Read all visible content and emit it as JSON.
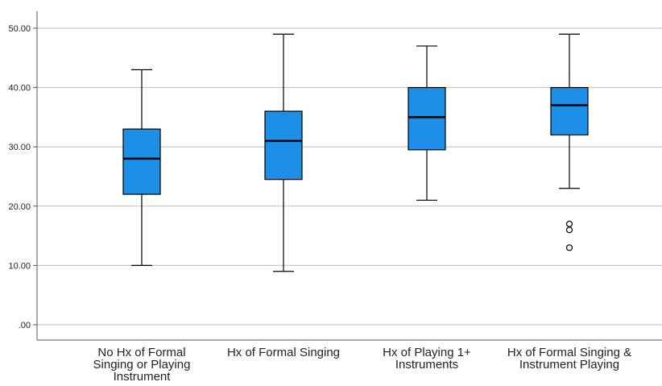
{
  "chart_data": {
    "type": "boxplot",
    "categories": [
      "No Hx of Formal\nSinging or Playing\nInstrument",
      "Hx of Formal Singing",
      "Hx of Playing 1+\nInstruments",
      "Hx of Formal Singing &\nInstrument Playing"
    ],
    "boxes": [
      {
        "min": 10,
        "q1": 22,
        "median": 28,
        "q3": 33,
        "max": 43,
        "outliers": []
      },
      {
        "min": 9,
        "q1": 24.5,
        "median": 31,
        "q3": 36,
        "max": 49,
        "outliers": []
      },
      {
        "min": 21,
        "q1": 29.5,
        "median": 35,
        "q3": 40,
        "max": 47,
        "outliers": []
      },
      {
        "min": 23,
        "q1": 32,
        "median": 37,
        "q3": 40,
        "max": 49,
        "outliers": [
          17,
          16,
          13
        ]
      }
    ],
    "y_ticks": [
      ".00",
      "10.00",
      "20.00",
      "30.00",
      "40.00",
      "50.00"
    ],
    "ylim": [
      -2.5,
      52.5
    ],
    "grid": true,
    "box_color": "#1d8fe6",
    "line_color": "#000000",
    "grid_color": "#bdbdbd"
  }
}
